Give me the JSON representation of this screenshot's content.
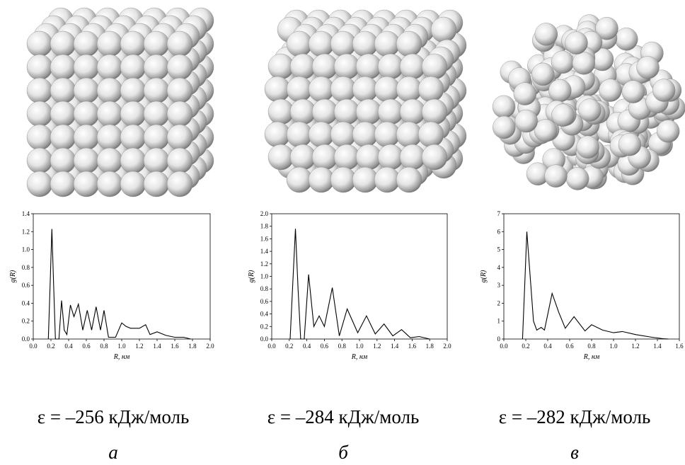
{
  "chart_data": [
    {
      "type": "line",
      "color": "#000000",
      "x_label": "R, нм",
      "y_label": "g(R)",
      "x": [
        0.17,
        0.19,
        0.21,
        0.23,
        0.25,
        0.29,
        0.32,
        0.35,
        0.38,
        0.42,
        0.46,
        0.51,
        0.56,
        0.61,
        0.66,
        0.71,
        0.76,
        0.8,
        0.85,
        0.93,
        1.0,
        1.05,
        1.1,
        1.2,
        1.27,
        1.32,
        1.4,
        1.5,
        1.6,
        1.7,
        1.78
      ],
      "values": [
        0,
        0.6,
        1.23,
        0.6,
        0,
        0,
        0.43,
        0.1,
        0.05,
        0.38,
        0.25,
        0.39,
        0.1,
        0.32,
        0.1,
        0.36,
        0.1,
        0.32,
        0.02,
        0.02,
        0.18,
        0.14,
        0.12,
        0.12,
        0.16,
        0.05,
        0.08,
        0.04,
        0.02,
        0.02,
        0
      ],
      "xlim": [
        0,
        2
      ],
      "ylim": [
        0,
        1.4
      ],
      "xticks": [
        {
          "value": 0,
          "label": "0.0"
        },
        {
          "value": 0.2,
          "label": "0.2"
        },
        {
          "value": 0.4,
          "label": "0.4"
        },
        {
          "value": 0.6,
          "label": "0.6"
        },
        {
          "value": 0.8,
          "label": "0.8"
        },
        {
          "value": 1,
          "label": "1.0"
        },
        {
          "value": 1.2,
          "label": "1.2"
        },
        {
          "value": 1.4,
          "label": "1.4"
        },
        {
          "value": 1.6,
          "label": "1.6"
        },
        {
          "value": 1.8,
          "label": "1.8"
        },
        {
          "value": 2,
          "label": "2.0"
        }
      ],
      "yticks": [
        {
          "value": 0,
          "label": "0.0"
        },
        {
          "value": 0.2,
          "label": "0.2"
        },
        {
          "value": 0.4,
          "label": "0.4"
        },
        {
          "value": 0.6,
          "label": "0.6"
        },
        {
          "value": 0.8,
          "label": "0.8"
        },
        {
          "value": 1,
          "label": "1.0"
        },
        {
          "value": 1.2,
          "label": "1.2"
        },
        {
          "value": 1.4,
          "label": "1.4"
        }
      ],
      "annotations": [
        "ε = –256 кДж/моль",
        "а"
      ]
    },
    {
      "type": "line",
      "color": "#000000",
      "x_label": "R, нм",
      "y_label": "g(R)",
      "x": [
        0.21,
        0.24,
        0.27,
        0.3,
        0.33,
        0.37,
        0.42,
        0.48,
        0.54,
        0.6,
        0.69,
        0.77,
        0.86,
        0.98,
        1.08,
        1.18,
        1.28,
        1.38,
        1.48,
        1.58,
        1.68,
        1.8
      ],
      "values": [
        0,
        0.9,
        1.76,
        0.8,
        0,
        0,
        1.03,
        0.2,
        0.37,
        0.2,
        0.82,
        0.05,
        0.48,
        0.1,
        0.37,
        0.08,
        0.24,
        0.05,
        0.15,
        0.02,
        0.04,
        0
      ],
      "xlim": [
        0,
        2
      ],
      "ylim": [
        0,
        2
      ],
      "xticks": [
        {
          "value": 0,
          "label": "0.0"
        },
        {
          "value": 0.2,
          "label": "0.2"
        },
        {
          "value": 0.4,
          "label": "0.4"
        },
        {
          "value": 0.6,
          "label": "0.6"
        },
        {
          "value": 0.8,
          "label": "0.8"
        },
        {
          "value": 1,
          "label": "1.0"
        },
        {
          "value": 1.2,
          "label": "1.2"
        },
        {
          "value": 1.4,
          "label": "1.4"
        },
        {
          "value": 1.6,
          "label": "1.6"
        },
        {
          "value": 1.8,
          "label": "1.8"
        },
        {
          "value": 2,
          "label": "2.0"
        }
      ],
      "yticks": [
        {
          "value": 0,
          "label": "0.0"
        },
        {
          "value": 0.2,
          "label": "0.2"
        },
        {
          "value": 0.4,
          "label": "0.4"
        },
        {
          "value": 0.6,
          "label": "0.6"
        },
        {
          "value": 0.8,
          "label": "0.8"
        },
        {
          "value": 1,
          "label": "1.0"
        },
        {
          "value": 1.2,
          "label": "1.2"
        },
        {
          "value": 1.4,
          "label": "1.4"
        },
        {
          "value": 1.6,
          "label": "1.6"
        },
        {
          "value": 1.8,
          "label": "1.8"
        },
        {
          "value": 2,
          "label": "2.0"
        }
      ],
      "annotations": [
        "ε = –284 кДж/моль",
        "б"
      ]
    },
    {
      "type": "line",
      "color": "#000000",
      "x_label": "R, нм",
      "y_label": "g(R)",
      "x": [
        0.17,
        0.19,
        0.21,
        0.24,
        0.27,
        0.3,
        0.34,
        0.37,
        0.44,
        0.5,
        0.56,
        0.64,
        0.74,
        0.8,
        0.9,
        1.0,
        1.08,
        1.2,
        1.35,
        1.45,
        1.5
      ],
      "values": [
        0,
        3,
        6.0,
        3.5,
        1.0,
        0.5,
        0.65,
        0.5,
        2.55,
        1.5,
        0.6,
        1.25,
        0.45,
        0.8,
        0.5,
        0.35,
        0.42,
        0.25,
        0.1,
        0.02,
        0
      ],
      "xlim": [
        0,
        1.6
      ],
      "ylim": [
        0,
        7
      ],
      "xticks": [
        {
          "value": 0,
          "label": "0.0"
        },
        {
          "value": 0.2,
          "label": "0.2"
        },
        {
          "value": 0.4,
          "label": "0.4"
        },
        {
          "value": 0.6,
          "label": "0.6"
        },
        {
          "value": 0.8,
          "label": "0.8"
        },
        {
          "value": 1,
          "label": "1.0"
        },
        {
          "value": 1.2,
          "label": "1.2"
        },
        {
          "value": 1.4,
          "label": "1.4"
        },
        {
          "value": 1.6,
          "label": "1.6"
        }
      ],
      "yticks": [
        0,
        1,
        2,
        3,
        4,
        5,
        6,
        7
      ],
      "annotations": [
        "ε = –282 кДж/моль",
        "в"
      ]
    }
  ]
}
